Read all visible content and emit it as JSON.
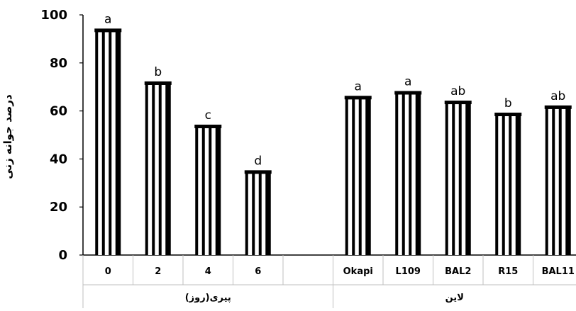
{
  "chart_data": {
    "type": "bar",
    "ylabel": "درصد جوانه زنی",
    "ylim": [
      0,
      100
    ],
    "yticks": [
      0,
      20,
      40,
      60,
      80,
      100
    ],
    "grid": false,
    "legend": "none",
    "categories": [
      "0",
      "2",
      "4",
      "6",
      "",
      "Okapi",
      "L109",
      "BAL2",
      "R15",
      "BAL11"
    ],
    "values": [
      94,
      72,
      54,
      35,
      null,
      66,
      68,
      64,
      59,
      62
    ],
    "letters": [
      "a",
      "b",
      "c",
      "d",
      "",
      "a",
      "a",
      "ab",
      "b",
      "ab"
    ],
    "groups": [
      {
        "label": "پیری(روز)",
        "categories": [
          "0",
          "2",
          "4",
          "6",
          ""
        ]
      },
      {
        "label": "لاین",
        "categories": [
          "Okapi",
          "L109",
          "BAL2",
          "R15",
          "BAL11"
        ]
      }
    ],
    "colors": {
      "bar_fill": "#ffffff",
      "bar_stripe": "#000000",
      "axis": "#000000",
      "separator": "#bfbfbf"
    }
  }
}
